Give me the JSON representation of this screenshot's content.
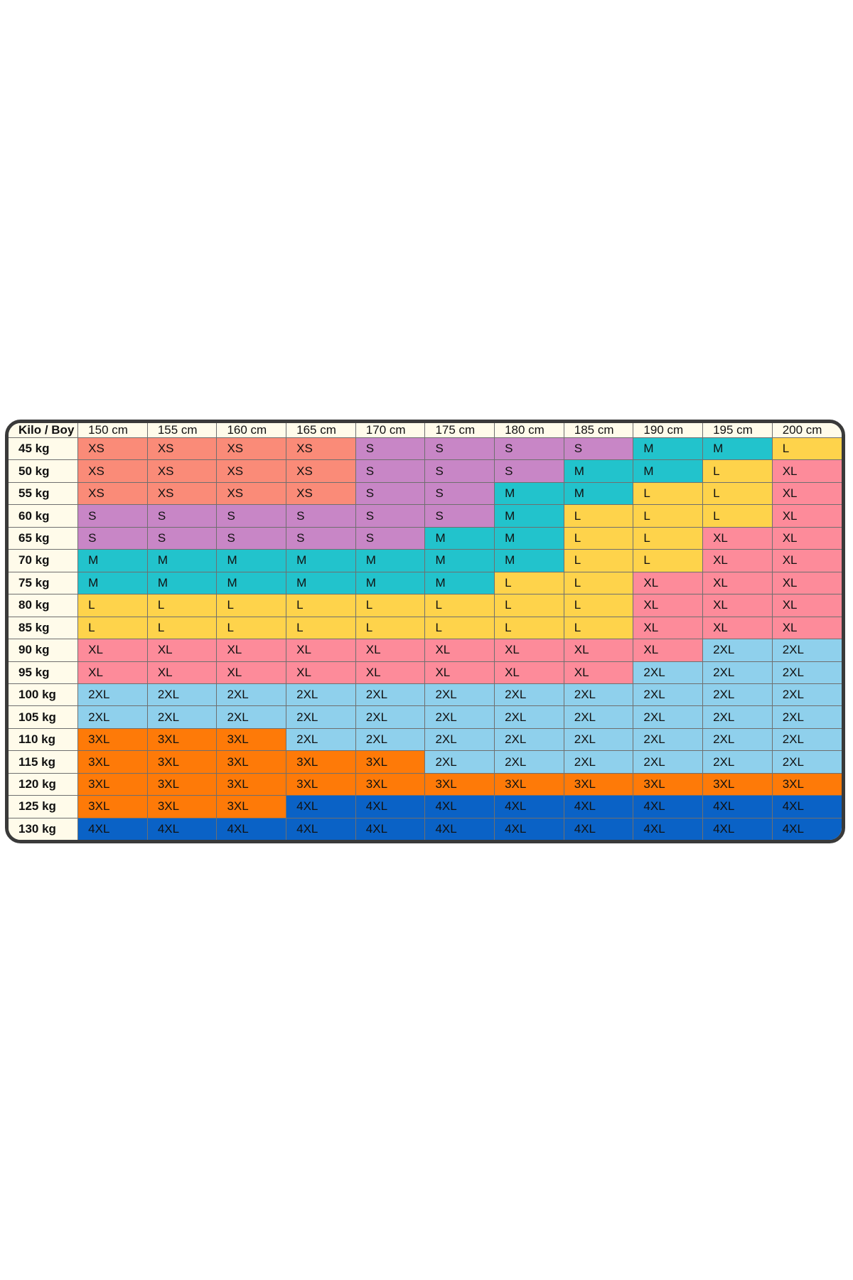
{
  "chart_data": {
    "type": "table",
    "corner_label": "Kilo / Boy",
    "columns": [
      "150 cm",
      "155 cm",
      "160 cm",
      "165 cm",
      "170 cm",
      "175 cm",
      "180 cm",
      "185 cm",
      "190 cm",
      "195 cm",
      "200 cm"
    ],
    "rows": [
      {
        "label": "45 kg",
        "cells": [
          "XS",
          "XS",
          "XS",
          "XS",
          "S",
          "S",
          "S",
          "S",
          "M",
          "M",
          "L"
        ]
      },
      {
        "label": "50 kg",
        "cells": [
          "XS",
          "XS",
          "XS",
          "XS",
          "S",
          "S",
          "S",
          "M",
          "M",
          "L",
          "XL"
        ]
      },
      {
        "label": "55 kg",
        "cells": [
          "XS",
          "XS",
          "XS",
          "XS",
          "S",
          "S",
          "M",
          "M",
          "L",
          "L",
          "XL"
        ]
      },
      {
        "label": "60 kg",
        "cells": [
          "S",
          "S",
          "S",
          "S",
          "S",
          "S",
          "M",
          "L",
          "L",
          "L",
          "XL"
        ]
      },
      {
        "label": "65 kg",
        "cells": [
          "S",
          "S",
          "S",
          "S",
          "S",
          "M",
          "M",
          "L",
          "L",
          "XL",
          "XL"
        ]
      },
      {
        "label": "70 kg",
        "cells": [
          "M",
          "M",
          "M",
          "M",
          "M",
          "M",
          "M",
          "L",
          "L",
          "XL",
          "XL"
        ]
      },
      {
        "label": "75 kg",
        "cells": [
          "M",
          "M",
          "M",
          "M",
          "M",
          "M",
          "L",
          "L",
          "XL",
          "XL",
          "XL"
        ]
      },
      {
        "label": "80 kg",
        "cells": [
          "L",
          "L",
          "L",
          "L",
          "L",
          "L",
          "L",
          "L",
          "XL",
          "XL",
          "XL"
        ]
      },
      {
        "label": "85 kg",
        "cells": [
          "L",
          "L",
          "L",
          "L",
          "L",
          "L",
          "L",
          "L",
          "XL",
          "XL",
          "XL"
        ]
      },
      {
        "label": "90 kg",
        "cells": [
          "XL",
          "XL",
          "XL",
          "XL",
          "XL",
          "XL",
          "XL",
          "XL",
          "XL",
          "2XL",
          "2XL"
        ]
      },
      {
        "label": "95 kg",
        "cells": [
          "XL",
          "XL",
          "XL",
          "XL",
          "XL",
          "XL",
          "XL",
          "XL",
          "2XL",
          "2XL",
          "2XL"
        ]
      },
      {
        "label": "100 kg",
        "cells": [
          "2XL",
          "2XL",
          "2XL",
          "2XL",
          "2XL",
          "2XL",
          "2XL",
          "2XL",
          "2XL",
          "2XL",
          "2XL"
        ]
      },
      {
        "label": "105 kg",
        "cells": [
          "2XL",
          "2XL",
          "2XL",
          "2XL",
          "2XL",
          "2XL",
          "2XL",
          "2XL",
          "2XL",
          "2XL",
          "2XL"
        ]
      },
      {
        "label": "110 kg",
        "cells": [
          "3XL",
          "3XL",
          "3XL",
          "2XL",
          "2XL",
          "2XL",
          "2XL",
          "2XL",
          "2XL",
          "2XL",
          "2XL"
        ]
      },
      {
        "label": "115 kg",
        "cells": [
          "3XL",
          "3XL",
          "3XL",
          "3XL",
          "3XL",
          "2XL",
          "2XL",
          "2XL",
          "2XL",
          "2XL",
          "2XL"
        ]
      },
      {
        "label": "120 kg",
        "cells": [
          "3XL",
          "3XL",
          "3XL",
          "3XL",
          "3XL",
          "3XL",
          "3XL",
          "3XL",
          "3XL",
          "3XL",
          "3XL"
        ]
      },
      {
        "label": "125 kg",
        "cells": [
          "3XL",
          "3XL",
          "3XL",
          "4XL",
          "4XL",
          "4XL",
          "4XL",
          "4XL",
          "4XL",
          "4XL",
          "4XL"
        ]
      },
      {
        "label": "130 kg",
        "cells": [
          "4XL",
          "4XL",
          "4XL",
          "4XL",
          "4XL",
          "4XL",
          "4XL",
          "4XL",
          "4XL",
          "4XL",
          "4XL"
        ]
      }
    ],
    "size_colors": {
      "XS": "#fa8b78",
      "S": "#c886c6",
      "M": "#22c3cc",
      "L": "#fed34b",
      "XL": "#fd8b9a",
      "2XL": "#8fd0ec",
      "3XL": "#fe7a08",
      "4XL": "#0a62c6"
    },
    "header_background": "#fffbea",
    "border_color": "#3a3a3a"
  }
}
